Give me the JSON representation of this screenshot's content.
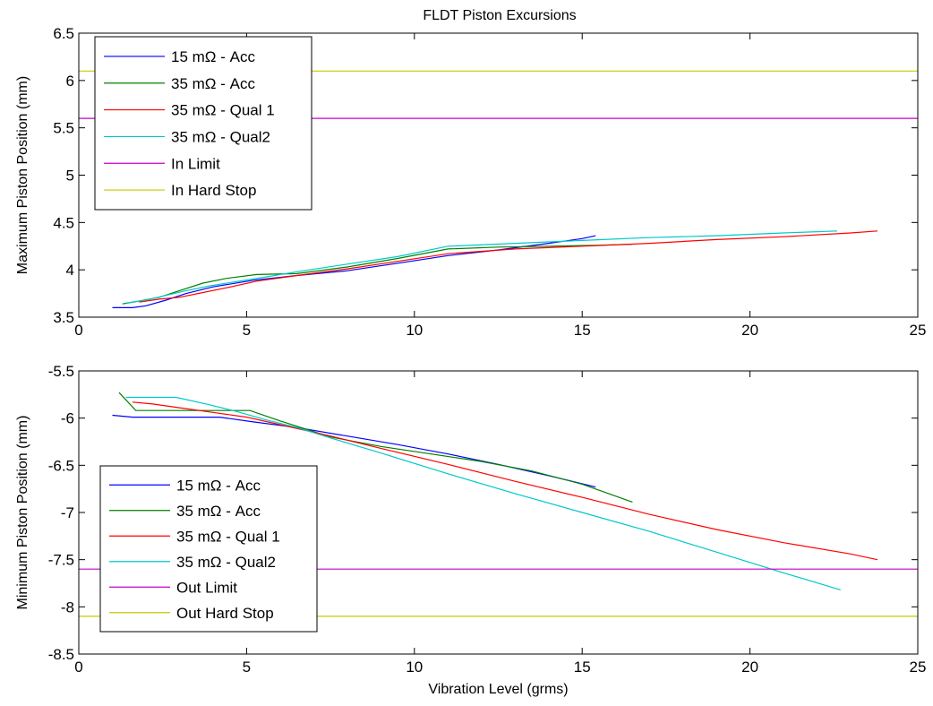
{
  "figure": {
    "title": "FLDT Piston Excursions"
  },
  "chart_data": [
    {
      "type": "line",
      "title": "FLDT Piston Excursions",
      "xlabel": "",
      "ylabel": "Maximum Piston Position (mm)",
      "xlim": [
        0,
        25
      ],
      "ylim": [
        3.5,
        6.5
      ],
      "xticks": [
        0,
        5,
        10,
        15,
        20,
        25
      ],
      "yticks": [
        3.5,
        4,
        4.5,
        5,
        5.5,
        6,
        6.5
      ],
      "yticklabels": [
        "3.5",
        "4",
        "4.5",
        "5",
        "5.5",
        "6",
        "6.5"
      ],
      "grid": false,
      "legend_position": "top-left",
      "series": [
        {
          "name": "15 mΩ - Acc",
          "color": "#0000ff",
          "x": [
            1.0,
            1.6,
            2.0,
            2.6,
            3.2,
            4.0,
            5.2,
            6.5,
            8.0,
            9.5,
            11.0,
            12.5,
            14.0,
            15.0,
            15.4
          ],
          "y": [
            3.6,
            3.6,
            3.62,
            3.68,
            3.75,
            3.82,
            3.89,
            3.94,
            3.99,
            4.07,
            4.15,
            4.21,
            4.28,
            4.33,
            4.36
          ]
        },
        {
          "name": "35 mΩ - Acc",
          "color": "#008000",
          "x": [
            1.3,
            1.8,
            2.4,
            3.0,
            3.7,
            4.4,
            5.3,
            6.5,
            8.0,
            9.5,
            11.0,
            12.5,
            14.0,
            15.5,
            16.5
          ],
          "y": [
            3.64,
            3.67,
            3.71,
            3.78,
            3.86,
            3.91,
            3.95,
            3.96,
            4.03,
            4.12,
            4.22,
            4.24,
            4.25,
            4.26,
            4.27
          ]
        },
        {
          "name": "35 mΩ - Qual 1",
          "color": "#ff0000",
          "x": [
            1.8,
            2.4,
            3.0,
            3.7,
            4.4,
            5.3,
            6.5,
            8.0,
            9.5,
            11.0,
            13.0,
            15.0,
            17.0,
            19.0,
            21.0,
            23.0,
            23.8
          ],
          "y": [
            3.66,
            3.69,
            3.71,
            3.76,
            3.81,
            3.88,
            3.94,
            4.01,
            4.09,
            4.17,
            4.22,
            4.25,
            4.28,
            4.32,
            4.35,
            4.39,
            4.41
          ]
        },
        {
          "name": "35 mΩ - Qual2",
          "color": "#00c8c8",
          "x": [
            1.4,
            2.0,
            2.6,
            3.2,
            3.9,
            4.6,
            5.5,
            6.5,
            8.0,
            9.5,
            11.0,
            13.0,
            15.0,
            17.0,
            19.0,
            21.0,
            22.6
          ],
          "y": [
            3.65,
            3.68,
            3.73,
            3.78,
            3.83,
            3.87,
            3.92,
            3.98,
            4.06,
            4.14,
            4.25,
            4.28,
            4.31,
            4.34,
            4.36,
            4.39,
            4.41
          ]
        },
        {
          "name": "In Limit",
          "color": "#c800c8",
          "x": [
            0,
            25
          ],
          "y": [
            5.6,
            5.6
          ]
        },
        {
          "name": "In Hard Stop",
          "color": "#c8c800",
          "x": [
            0,
            25
          ],
          "y": [
            6.1,
            6.1
          ]
        }
      ]
    },
    {
      "type": "line",
      "title": "",
      "xlabel": "Vibration Level (grms)",
      "ylabel": "Minimum Piston Position (mm)",
      "xlim": [
        0,
        25
      ],
      "ylim": [
        -8.5,
        -5.5
      ],
      "xticks": [
        0,
        5,
        10,
        15,
        20,
        25
      ],
      "yticks": [
        -8.5,
        -8,
        -7.5,
        -7,
        -6.5,
        -6,
        -5.5
      ],
      "yticklabels": [
        "-8.5",
        "-8",
        "-7.5",
        "-7",
        "-6.5",
        "-6",
        "-5.5"
      ],
      "grid": false,
      "legend_position": "bottom-left",
      "series": [
        {
          "name": "15 mΩ - Acc",
          "color": "#0000ff",
          "x": [
            1.0,
            1.6,
            2.5,
            3.5,
            4.2,
            5.2,
            6.5,
            8.0,
            9.5,
            11.0,
            12.5,
            14.0,
            15.4
          ],
          "y": [
            -5.97,
            -5.99,
            -5.99,
            -5.99,
            -5.99,
            -6.04,
            -6.1,
            -6.19,
            -6.28,
            -6.38,
            -6.49,
            -6.61,
            -6.73
          ]
        },
        {
          "name": "35 mΩ - Acc",
          "color": "#008000",
          "x": [
            1.2,
            1.7,
            2.5,
            3.5,
            4.5,
            5.1,
            6.0,
            7.5,
            9.0,
            10.5,
            12.0,
            13.5,
            15.0,
            16.5
          ],
          "y": [
            -5.73,
            -5.92,
            -5.92,
            -5.92,
            -5.92,
            -5.92,
            -6.03,
            -6.2,
            -6.3,
            -6.38,
            -6.46,
            -6.56,
            -6.7,
            -6.89
          ]
        },
        {
          "name": "35 mΩ - Qual 1",
          "color": "#ff0000",
          "x": [
            1.6,
            2.2,
            3.0,
            4.0,
            5.0,
            6.0,
            7.5,
            9.0,
            11.0,
            13.0,
            15.0,
            17.0,
            19.0,
            21.0,
            23.0,
            23.8
          ],
          "y": [
            -5.83,
            -5.85,
            -5.89,
            -5.94,
            -5.99,
            -6.07,
            -6.19,
            -6.32,
            -6.49,
            -6.67,
            -6.84,
            -7.02,
            -7.18,
            -7.32,
            -7.44,
            -7.5
          ]
        },
        {
          "name": "35 mΩ - Qual2",
          "color": "#00c8c8",
          "x": [
            1.4,
            2.0,
            2.9,
            3.8,
            4.7,
            5.6,
            6.5,
            7.5,
            9.0,
            11.0,
            13.0,
            15.0,
            17.0,
            19.0,
            21.0,
            22.7
          ],
          "y": [
            -5.78,
            -5.78,
            -5.78,
            -5.85,
            -5.93,
            -6.02,
            -6.1,
            -6.21,
            -6.37,
            -6.59,
            -6.8,
            -7.0,
            -7.2,
            -7.42,
            -7.64,
            -7.82
          ]
        },
        {
          "name": "Out Limit",
          "color": "#c800c8",
          "x": [
            0,
            25
          ],
          "y": [
            -7.6,
            -7.6
          ]
        },
        {
          "name": "Out Hard Stop",
          "color": "#c8c800",
          "x": [
            0,
            25
          ],
          "y": [
            -8.1,
            -8.1
          ]
        }
      ]
    }
  ]
}
